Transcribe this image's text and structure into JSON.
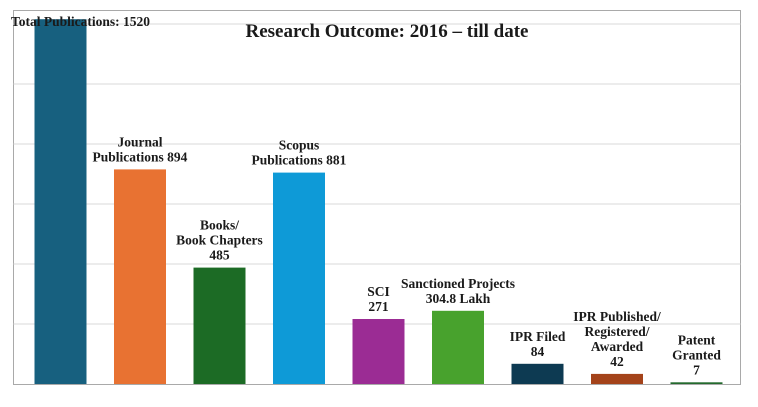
{
  "chart_data": {
    "type": "bar",
    "title": "Research Outcome: 2016 – till date",
    "xlabel": "",
    "ylabel": "",
    "grid": true,
    "ylim": [
      0,
      1550
    ],
    "bars": [
      {
        "lines": [
          "Total Publications: 1520"
        ],
        "value": 1520,
        "color": "#17607f"
      },
      {
        "lines": [
          "Journal",
          "Publications 894"
        ],
        "value": 894,
        "color": "#e87232"
      },
      {
        "lines": [
          "Books/",
          "Book Chapters",
          "485"
        ],
        "value": 485,
        "color": "#1c6b25"
      },
      {
        "lines": [
          "Scopus",
          "Publications 881"
        ],
        "value": 881,
        "color": "#0e9ad7"
      },
      {
        "lines": [
          "SCI",
          "271"
        ],
        "value": 271,
        "color": "#9b2c94"
      },
      {
        "lines": [
          "Sanctioned Projects",
          "304.8 Lakh"
        ],
        "value": 304.8,
        "color": "#48a22d"
      },
      {
        "lines": [
          "IPR Filed",
          "84"
        ],
        "value": 84,
        "color": "#0d3a52"
      },
      {
        "lines": [
          "IPR Published/",
          "Registered/",
          "Awarded",
          "42"
        ],
        "value": 42,
        "color": "#a4431a"
      },
      {
        "lines": [
          "Patent",
          "Granted",
          "7"
        ],
        "value": 7,
        "color": "#236a2d"
      }
    ]
  }
}
